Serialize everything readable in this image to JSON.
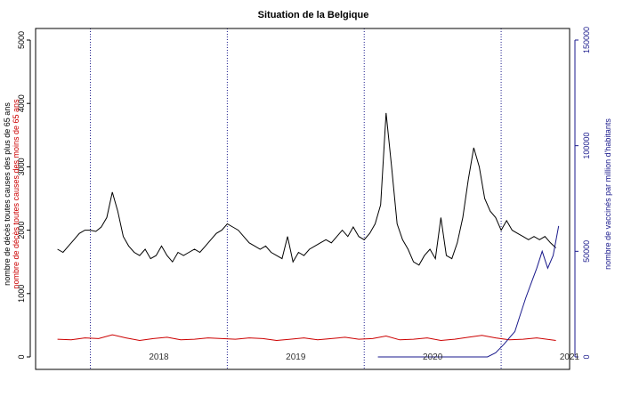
{
  "chart_data": {
    "type": "line",
    "title": "Situation de la Belgique",
    "ylabel_left_line1": "nombre de décès toutes causes des plus de 65 ans",
    "ylabel_left_line2": "nombre de décès toutes causes des moins de 65 ans",
    "ylabel_right": "nombre de vaccinés par million d'habitants",
    "year_labels": [
      {
        "label": "2018",
        "x": 2018.0
      },
      {
        "label": "2019",
        "x": 2019.0
      },
      {
        "label": "2020",
        "x": 2020.0
      },
      {
        "label": "2021",
        "x": 2021.0
      }
    ],
    "year_boundaries": [
      2017.5,
      2018.5,
      2019.5,
      2020.5
    ],
    "xlim": [
      2017.1,
      2021.0
    ],
    "ylim_left": [
      0,
      5000
    ],
    "yticks_left": [
      0,
      1000,
      2000,
      3000,
      4000,
      5000
    ],
    "ylim_right": [
      0,
      150000
    ],
    "yticks_right": [
      0,
      50000,
      100000,
      150000
    ],
    "colors": {
      "over65": "#000000",
      "under65": "#cc0000",
      "vaccinated": "#1a1a8c",
      "boundary": "#1a1a8c"
    },
    "series": [
      {
        "name": "plus de 65 ans",
        "axis": "left",
        "x": [
          2017.26,
          2017.3,
          2017.34,
          2017.38,
          2017.42,
          2017.46,
          2017.5,
          2017.54,
          2017.58,
          2017.62,
          2017.66,
          2017.7,
          2017.74,
          2017.78,
          2017.82,
          2017.86,
          2017.9,
          2017.94,
          2017.98,
          2018.02,
          2018.06,
          2018.1,
          2018.14,
          2018.18,
          2018.22,
          2018.26,
          2018.3,
          2018.34,
          2018.38,
          2018.42,
          2018.46,
          2018.5,
          2018.54,
          2018.58,
          2018.62,
          2018.66,
          2018.7,
          2018.74,
          2018.78,
          2018.82,
          2018.86,
          2018.9,
          2018.94,
          2018.98,
          2019.02,
          2019.06,
          2019.1,
          2019.14,
          2019.18,
          2019.22,
          2019.26,
          2019.3,
          2019.34,
          2019.38,
          2019.42,
          2019.46,
          2019.5,
          2019.54,
          2019.58,
          2019.62,
          2019.66,
          2019.7,
          2019.74,
          2019.78,
          2019.82,
          2019.86,
          2019.9,
          2019.94,
          2019.98,
          2020.02,
          2020.06,
          2020.1,
          2020.14,
          2020.18,
          2020.22,
          2020.26,
          2020.3,
          2020.34,
          2020.38,
          2020.42,
          2020.46,
          2020.5,
          2020.54,
          2020.58,
          2020.62,
          2020.66,
          2020.7,
          2020.74,
          2020.78,
          2020.82,
          2020.86,
          2020.9
        ],
        "values": [
          1700,
          1650,
          1750,
          1850,
          1950,
          2000,
          2000,
          1980,
          2050,
          2200,
          2600,
          2300,
          1900,
          1750,
          1650,
          1600,
          1700,
          1550,
          1600,
          1750,
          1600,
          1500,
          1650,
          1600,
          1650,
          1700,
          1650,
          1750,
          1850,
          1950,
          2000,
          2100,
          2050,
          2000,
          1900,
          1800,
          1750,
          1700,
          1750,
          1650,
          1600,
          1550,
          1900,
          1500,
          1650,
          1600,
          1700,
          1750,
          1800,
          1850,
          1800,
          1900,
          2000,
          1900,
          2050,
          1900,
          1850,
          1950,
          2100,
          2400,
          3850,
          3000,
          2100,
          1850,
          1700,
          1500,
          1450,
          1600,
          1700,
          1550,
          2200,
          1600,
          1550,
          1800,
          2200,
          2800,
          3300,
          3000,
          2500,
          2300,
          2200,
          2000,
          2150,
          2000,
          1950,
          1900,
          1850,
          1900,
          1850,
          1900,
          1800,
          1720
        ]
      },
      {
        "name": "moins de 65 ans",
        "axis": "left",
        "x": [
          2017.26,
          2017.36,
          2017.46,
          2017.56,
          2017.66,
          2017.76,
          2017.86,
          2017.96,
          2018.06,
          2018.16,
          2018.26,
          2018.36,
          2018.46,
          2018.56,
          2018.66,
          2018.76,
          2018.86,
          2018.96,
          2019.06,
          2019.16,
          2019.26,
          2019.36,
          2019.46,
          2019.56,
          2019.66,
          2019.76,
          2019.86,
          2019.96,
          2020.06,
          2020.16,
          2020.26,
          2020.36,
          2020.46,
          2020.56,
          2020.66,
          2020.76,
          2020.9
        ],
        "values": [
          280,
          270,
          300,
          290,
          350,
          300,
          260,
          290,
          310,
          270,
          280,
          300,
          290,
          280,
          300,
          290,
          260,
          280,
          300,
          270,
          290,
          310,
          280,
          290,
          330,
          270,
          280,
          300,
          260,
          280,
          310,
          340,
          300,
          270,
          280,
          300,
          260
        ]
      },
      {
        "name": "vaccinés",
        "axis": "right",
        "x": [
          2019.6,
          2019.8,
          2020.0,
          2020.2,
          2020.4,
          2020.46,
          2020.52,
          2020.56,
          2020.6,
          2020.64,
          2020.68,
          2020.72,
          2020.76,
          2020.8,
          2020.84,
          2020.88,
          2020.92
        ],
        "values": [
          0,
          0,
          0,
          0,
          0,
          2000,
          6000,
          9000,
          12000,
          20000,
          28000,
          35000,
          42000,
          50000,
          42000,
          48000,
          62000
        ]
      }
    ]
  }
}
